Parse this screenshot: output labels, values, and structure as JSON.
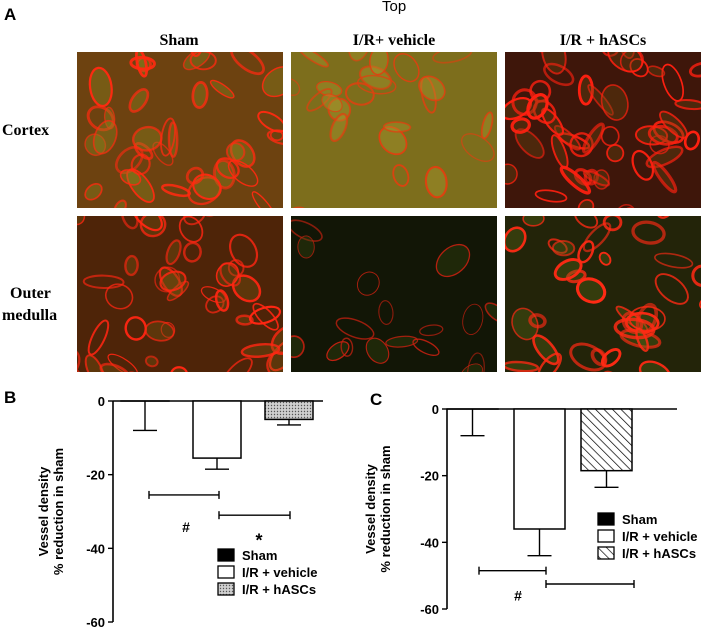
{
  "figure": {
    "top_label": "Top",
    "panel_a": {
      "letter": "A",
      "columns": [
        "Sham",
        "I/R+ vehicle",
        "I/R + hASCs"
      ],
      "rows": [
        "Cortex",
        "Outer medulla"
      ],
      "row2_lines": [
        "Outer",
        "medulla"
      ]
    },
    "panel_b": {
      "letter": "B"
    },
    "panel_c": {
      "letter": "C"
    }
  },
  "chart_data": [
    {
      "type": "bar",
      "panel": "B",
      "ylabel_lines": [
        "Vessel density",
        "% reduction in sham"
      ],
      "ylim": [
        -60,
        0
      ],
      "yticks": [
        0,
        -20,
        -40,
        -60
      ],
      "categories": [
        "Sham",
        "I/R + vehicle",
        "I/R + hASCs"
      ],
      "values": [
        0,
        -15.5,
        -5
      ],
      "errors": [
        8,
        3,
        1.5
      ],
      "fills": [
        "solid",
        "open",
        "dotted"
      ],
      "legend": [
        "Sham",
        "I/R + vehicle",
        "I/R + hASCs"
      ],
      "legend_position": "bottom-right",
      "annotations": [
        "#",
        "*"
      ]
    },
    {
      "type": "bar",
      "panel": "C",
      "ylabel_lines": [
        "Vessel density",
        "% reduction in sham"
      ],
      "ylim": [
        -60,
        0
      ],
      "yticks": [
        0,
        -20,
        -40,
        -60
      ],
      "categories": [
        "Sham",
        "I/R + vehicle",
        "I/R + hASCs"
      ],
      "values": [
        0,
        -36,
        -18.5
      ],
      "errors": [
        8,
        8,
        5
      ],
      "fills": [
        "solid",
        "open",
        "hatched"
      ],
      "legend": [
        "Sham",
        "I/R + vehicle",
        "I/R + hASCs"
      ],
      "legend_position": "bottom-right",
      "annotations": [
        "#"
      ]
    }
  ]
}
